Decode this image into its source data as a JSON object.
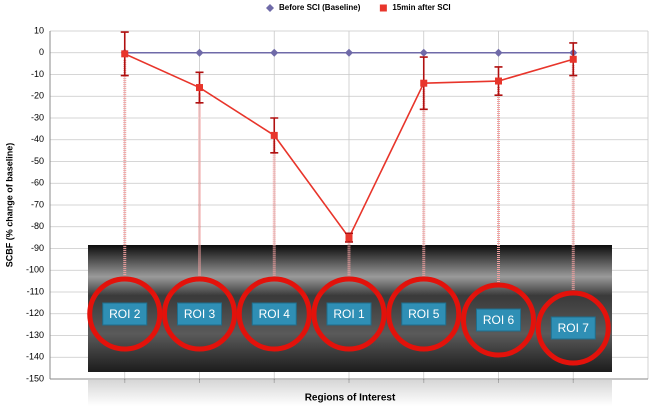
{
  "chart_data": {
    "type": "line",
    "x_label": "Regions of Interest",
    "y_label": "SCBF (% change of baseline)",
    "x": [
      1,
      2,
      3,
      4,
      5,
      6,
      7
    ],
    "xlim": [
      0,
      8
    ],
    "series": [
      {
        "name": "Before SCI (Baseline)",
        "color": "#6f6aa8",
        "marker": "diamond",
        "values": [
          0,
          0,
          0,
          0,
          0,
          0,
          0
        ]
      },
      {
        "name": "15min after SCI",
        "color": "#e8352b",
        "marker": "square",
        "values": [
          -0.5,
          -16,
          -38,
          -85,
          -14,
          -13,
          -3
        ],
        "errors": [
          10,
          7,
          8,
          2,
          12,
          6.5,
          7.5
        ]
      }
    ],
    "ylim": [
      -150,
      10
    ],
    "yticks": [
      10,
      0,
      -10,
      -20,
      -30,
      -40,
      -50,
      -60,
      -70,
      -80,
      -90,
      -100,
      -110,
      -120,
      -130,
      -140,
      -150
    ],
    "grid": true,
    "legend": "top",
    "roi_labels": [
      "ROI 2",
      "ROI 3",
      "ROI 4",
      "ROI 1",
      "ROI 5",
      "ROI 6",
      "ROI 7"
    ]
  }
}
